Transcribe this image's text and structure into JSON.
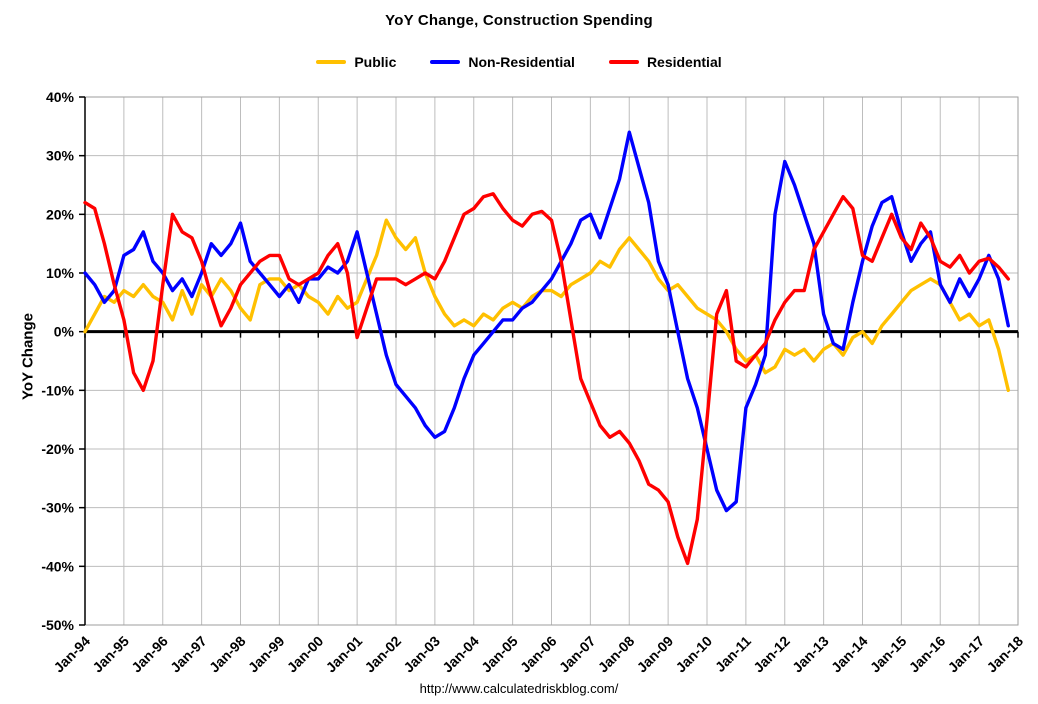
{
  "figure": {
    "title": "YoY Change,  Construction Spending",
    "y_axis_title": "YoY Change",
    "footer_url": "http://www.calculatedriskblog.com/"
  },
  "legend": {
    "items": [
      {
        "label": "Public",
        "color": "#FFC000"
      },
      {
        "label": "Non-Residential",
        "color": "#0000FF"
      },
      {
        "label": "Residential",
        "color": "#FF0000"
      }
    ]
  },
  "chart_data": {
    "type": "line",
    "title": "YoY Change,  Construction Spending",
    "ylabel": "YoY Change",
    "ylim": [
      -50,
      40
    ],
    "y_tick_step": 10,
    "y_tick_labels": [
      "40%",
      "30%",
      "20%",
      "10%",
      "0%",
      "-10%",
      "-20%",
      "-30%",
      "-40%",
      "-50%"
    ],
    "x_tick_labels": [
      "Jan-94",
      "Jan-95",
      "Jan-96",
      "Jan-97",
      "Jan-98",
      "Jan-99",
      "Jan-00",
      "Jan-01",
      "Jan-02",
      "Jan-03",
      "Jan-04",
      "Jan-05",
      "Jan-06",
      "Jan-07",
      "Jan-08",
      "Jan-09",
      "Jan-10",
      "Jan-11",
      "Jan-12",
      "Jan-13",
      "Jan-14",
      "Jan-15",
      "Jan-16",
      "Jan-17",
      "Jan-18"
    ],
    "x_range_years": [
      1994,
      2018
    ],
    "x_start": 1994.0,
    "x_step_years": 0.25,
    "x_end": 2017.75,
    "grid": true,
    "legend_position": "top",
    "zero_line": true,
    "series": [
      {
        "name": "Public",
        "color": "#FFC000",
        "values": [
          0,
          3,
          6,
          5,
          7,
          6,
          8,
          6,
          5,
          2,
          7,
          3,
          8,
          6,
          9,
          7,
          4,
          2,
          8,
          9,
          9,
          7,
          8,
          6,
          5,
          3,
          6,
          4,
          5,
          9,
          13,
          19,
          16,
          14,
          16,
          10,
          6,
          3,
          1,
          2,
          1,
          3,
          2,
          4,
          5,
          4,
          6,
          7,
          7,
          6,
          8,
          9,
          10,
          12,
          11,
          14,
          16,
          14,
          12,
          9,
          7,
          8,
          6,
          4,
          3,
          2,
          0,
          -3,
          -5,
          -4,
          -7,
          -6,
          -3,
          -4,
          -3,
          -5,
          -3,
          -2,
          -4,
          -1,
          0,
          -2,
          1,
          3,
          5,
          7,
          8,
          9,
          8,
          5,
          2,
          3,
          1,
          2,
          -3,
          -10
        ]
      },
      {
        "name": "Non-Residential",
        "color": "#0000FF",
        "values": [
          10,
          8,
          5,
          7,
          13,
          14,
          17,
          12,
          10,
          7,
          9,
          6,
          10,
          15,
          13,
          15,
          18.5,
          12,
          10,
          8,
          6,
          8,
          5,
          9,
          9,
          11,
          10,
          12,
          17,
          10,
          3,
          -4,
          -9,
          -11,
          -13,
          -16,
          -18,
          -17,
          -13,
          -8,
          -4,
          -2,
          0,
          2,
          2,
          4,
          5,
          7,
          9,
          12,
          15,
          19,
          20,
          16,
          21,
          26,
          34,
          28,
          22,
          12,
          8,
          0,
          -8,
          -13,
          -20,
          -27,
          -30.5,
          -29,
          -13,
          -9,
          -4,
          20,
          29,
          25,
          20,
          15,
          3,
          -2,
          -3,
          5,
          12,
          18,
          22,
          23,
          17,
          12,
          15,
          17,
          8,
          5,
          9,
          6,
          9,
          13,
          9,
          1
        ]
      },
      {
        "name": "Residential",
        "color": "#FF0000",
        "values": [
          22,
          21,
          15,
          8,
          2,
          -7,
          -10,
          -5,
          8,
          20,
          17,
          16,
          12,
          6,
          1,
          4,
          8,
          10,
          12,
          13,
          13,
          9,
          8,
          9,
          10,
          13,
          15,
          10,
          -1,
          4,
          9,
          9,
          9,
          8,
          9,
          10,
          9,
          12,
          16,
          20,
          21,
          23,
          23.5,
          21,
          19,
          18,
          20,
          20.5,
          19,
          12,
          2,
          -8,
          -12,
          -16,
          -18,
          -17,
          -19,
          -22,
          -26,
          -27,
          -29,
          -35,
          -39.5,
          -32,
          -15,
          3,
          7,
          -5,
          -6,
          -4,
          -2,
          2,
          5,
          7,
          7,
          14,
          17,
          20,
          23,
          21,
          13,
          12,
          16,
          20,
          16,
          14,
          18.5,
          16,
          12,
          11,
          13,
          10,
          12,
          12.5,
          11,
          9
        ]
      }
    ]
  }
}
